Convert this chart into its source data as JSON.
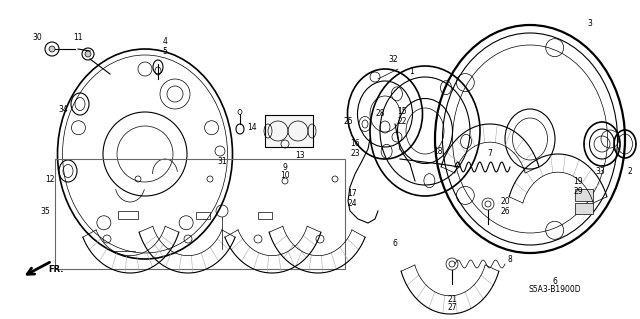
{
  "bg_color": "#ffffff",
  "line_color": "#1a1a1a",
  "diagram_code": "S5A3-B1900D",
  "fig_width": 6.4,
  "fig_height": 3.19,
  "dpi": 100
}
